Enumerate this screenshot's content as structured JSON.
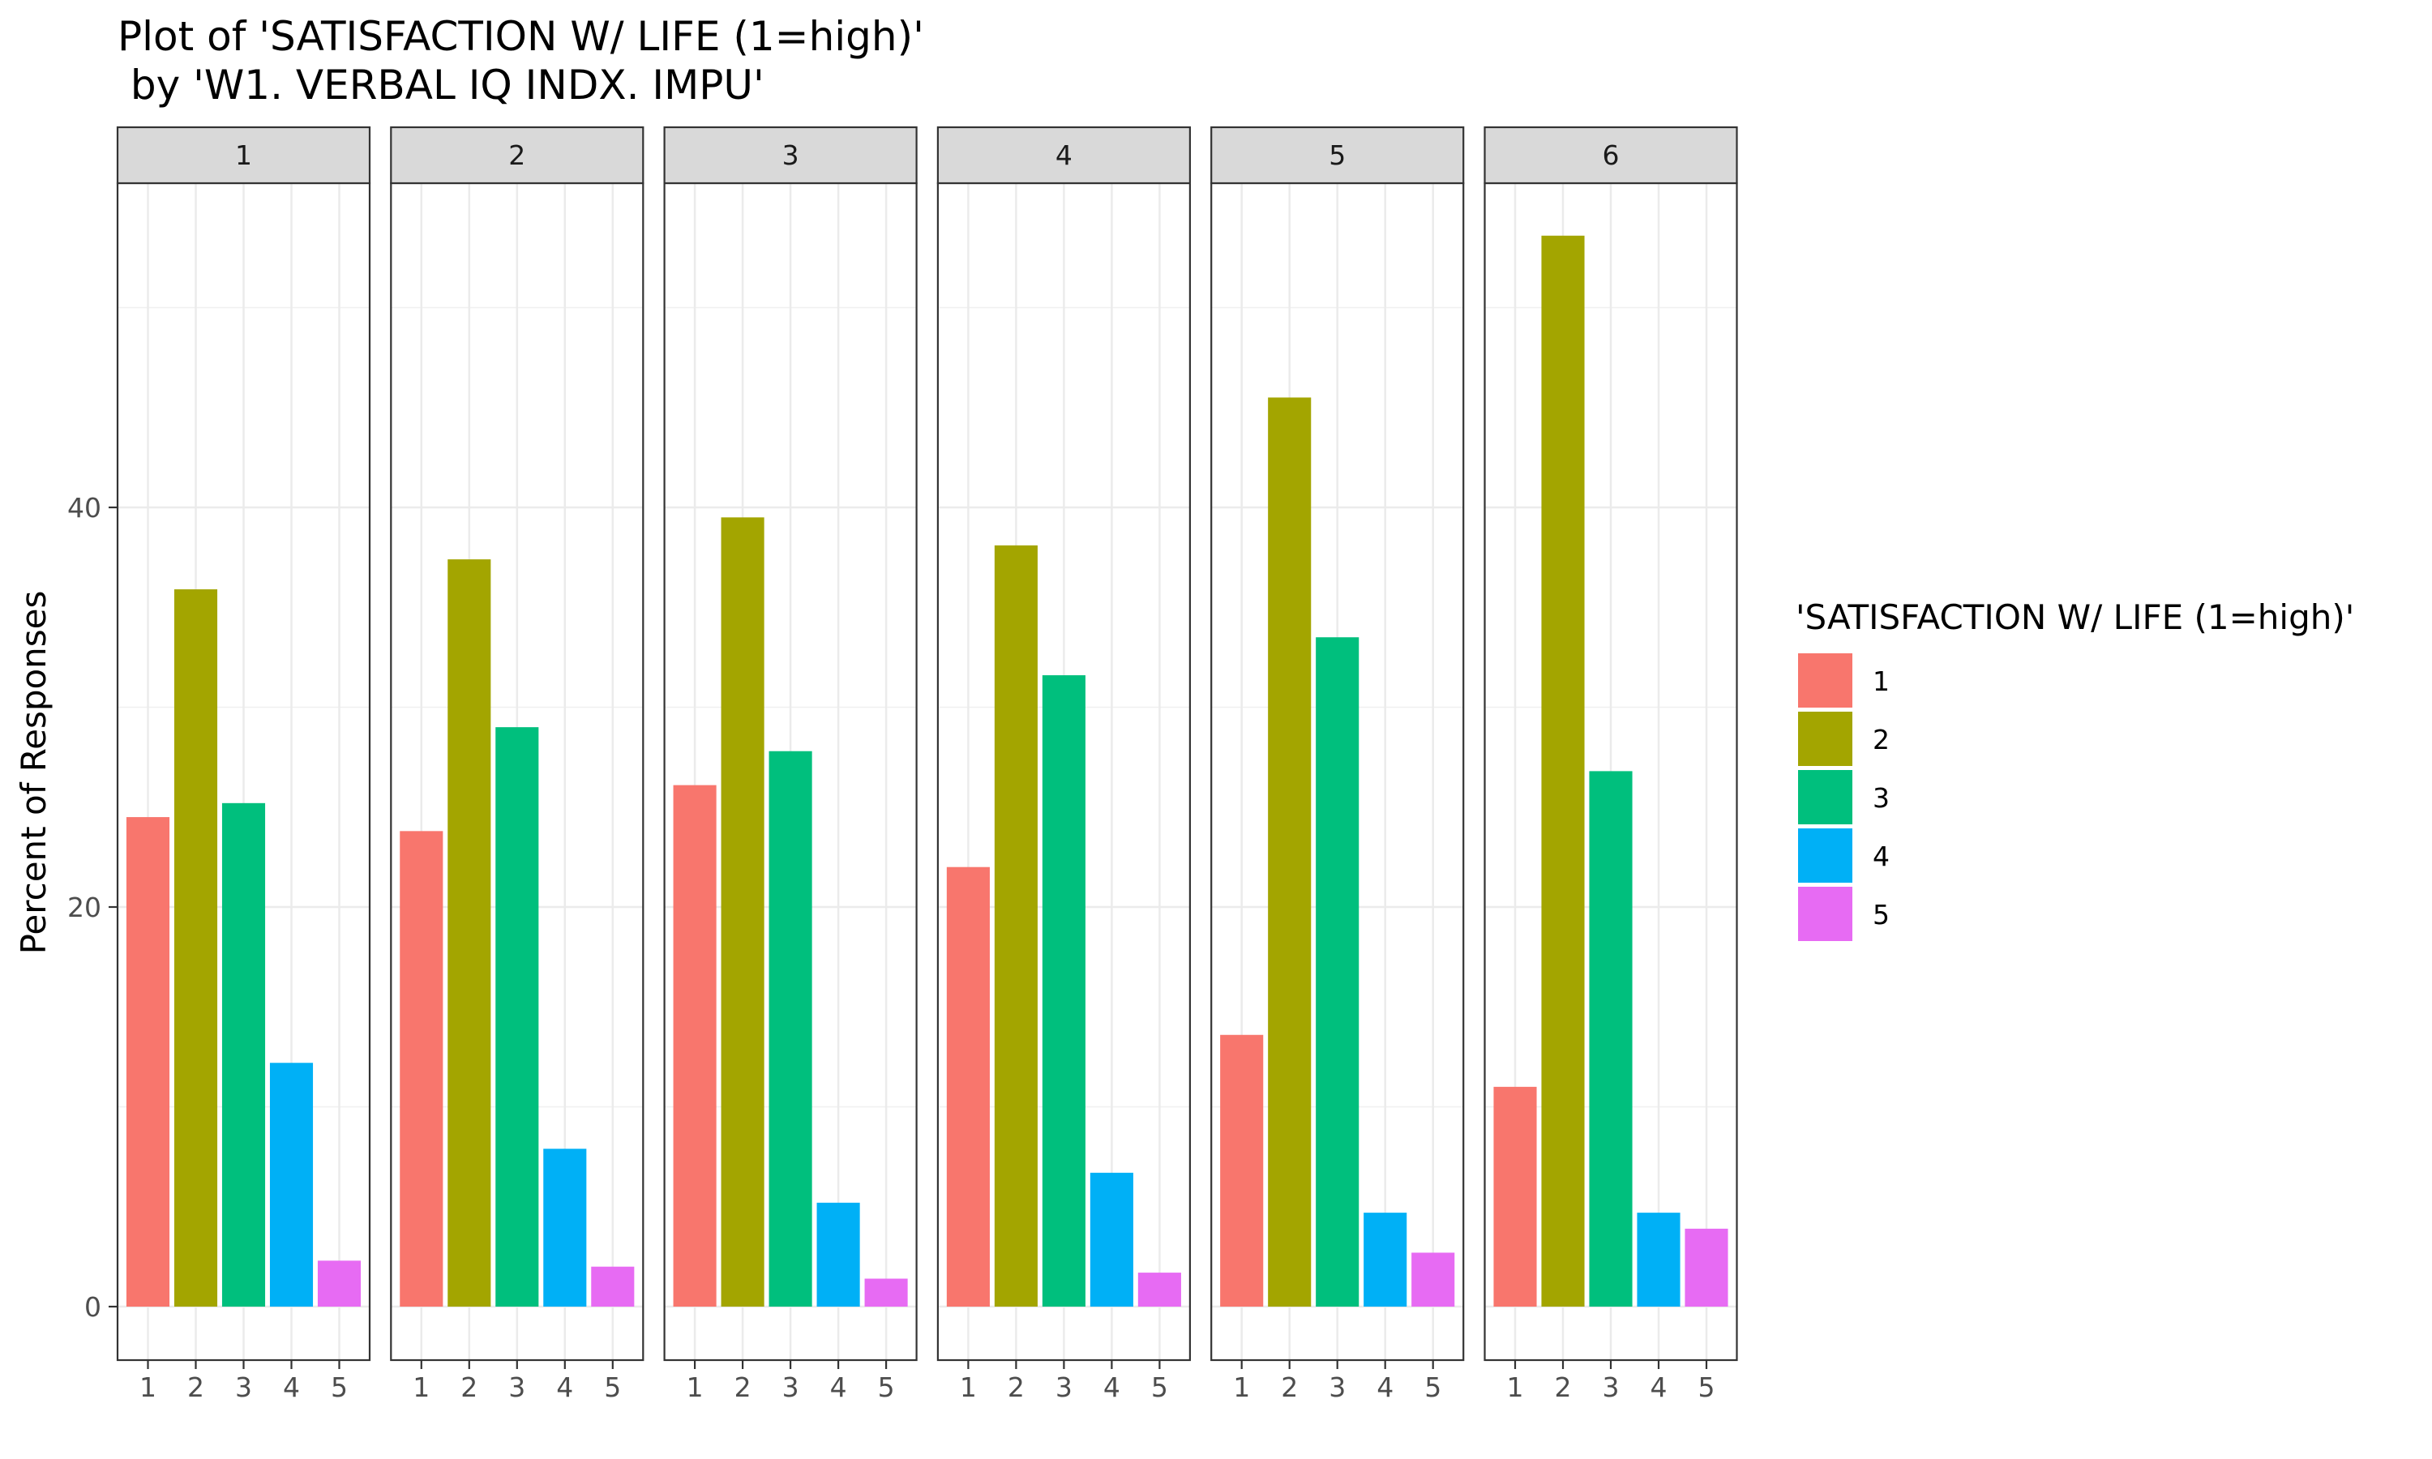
{
  "chart_data": {
    "type": "bar",
    "title": "Plot of 'SATISFACTION W/ LIFE (1=high)'",
    "subtitle": " by 'W1. VERBAL IQ INDX. IMPU'",
    "ylabel": "Percent of Responses",
    "xlabel": "",
    "ylim": [
      0,
      56.5
    ],
    "y_ticks": [
      0,
      20,
      40
    ],
    "grid": true,
    "categories": [
      "1",
      "2",
      "3",
      "4",
      "5"
    ],
    "legend": {
      "title": "'SATISFACTION W/ LIFE (1=high)'",
      "position": "right",
      "entries": [
        "1",
        "2",
        "3",
        "4",
        "5"
      ]
    },
    "colors": [
      "#F8766D",
      "#A3A500",
      "#00BF7D",
      "#00B0F6",
      "#E76BF3"
    ],
    "panels": [
      {
        "label": "1",
        "values": [
          24.5,
          35.9,
          25.2,
          12.2,
          2.3
        ]
      },
      {
        "label": "2",
        "values": [
          23.8,
          37.4,
          29.0,
          7.9,
          2.0
        ]
      },
      {
        "label": "3",
        "values": [
          26.1,
          39.5,
          27.8,
          5.2,
          1.4
        ]
      },
      {
        "label": "4",
        "values": [
          22.0,
          38.1,
          31.6,
          6.7,
          1.7
        ]
      },
      {
        "label": "5",
        "values": [
          13.6,
          45.5,
          33.5,
          4.7,
          2.7
        ]
      },
      {
        "label": "6",
        "values": [
          11.0,
          53.6,
          26.8,
          4.7,
          3.9
        ]
      }
    ]
  }
}
